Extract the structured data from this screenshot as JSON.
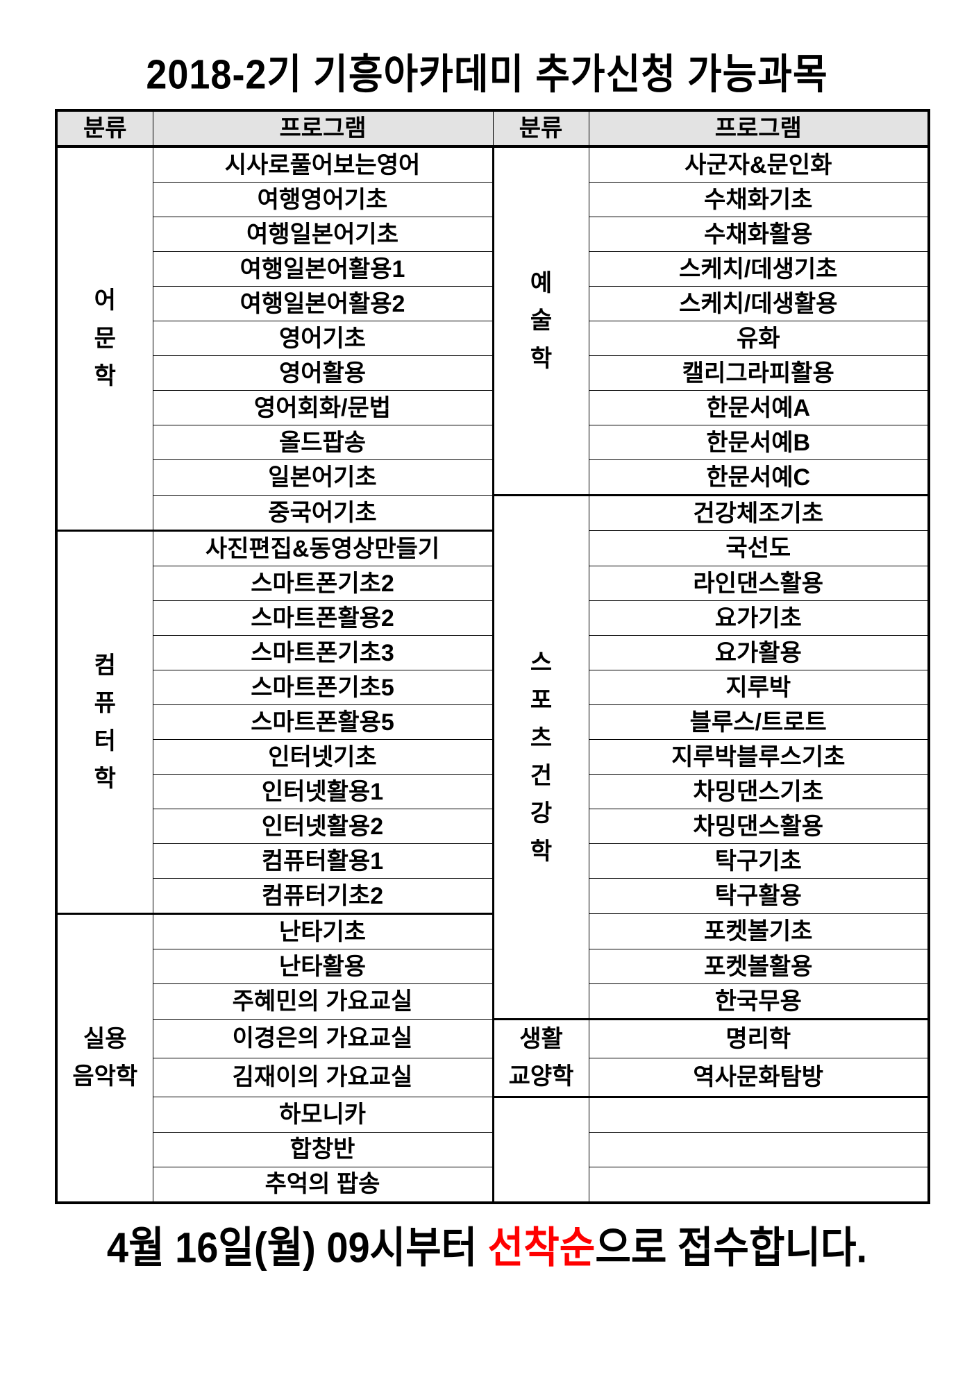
{
  "title": "2018-2기 기흥아카데미 추가신청 가능과목",
  "headers": {
    "category": "분류",
    "program": "프로그램"
  },
  "left_groups": [
    {
      "category": [
        "어",
        "문",
        "학"
      ],
      "items": [
        "시사로풀어보는영어",
        "여행영어기초",
        "여행일본어기초",
        "여행일본어활용1",
        "여행일본어활용2",
        "영어기초",
        "영어활용",
        "영어회화/문법",
        "올드팝송",
        "일본어기초",
        "중국어기초"
      ]
    },
    {
      "category": [
        "컴",
        "퓨",
        "터",
        "학"
      ],
      "items": [
        "사진편집&동영상만들기",
        "스마트폰기초2",
        "스마트폰활용2",
        "스마트폰기초3",
        "스마트폰기초5",
        "스마트폰활용5",
        "인터넷기초",
        "인터넷활용1",
        "인터넷활용2",
        "컴퓨터활용1",
        "컴퓨터기초2"
      ]
    },
    {
      "category": [
        "실용",
        "음악학"
      ],
      "items": [
        "난타기초",
        "난타활용",
        "주혜민의 가요교실",
        "이경은의 가요교실",
        "김재이의 가요교실",
        "하모니카",
        "합창반",
        "추억의 팝송"
      ]
    }
  ],
  "right_groups": [
    {
      "category": [
        "예",
        "술",
        "학"
      ],
      "items": [
        "사군자&문인화",
        "수채화기초",
        "수채화활용",
        "스케치/데생기초",
        "스케치/데생활용",
        "유화",
        "캘리그라피활용",
        "한문서예A",
        "한문서예B",
        "한문서예C"
      ]
    },
    {
      "category": [
        "스",
        "포",
        "츠",
        "건",
        "강",
        "학"
      ],
      "items": [
        "건강체조기초",
        "국선도",
        "라인댄스활용",
        "요가기초",
        "요가활용",
        "지루박",
        "블루스/트로트",
        "지루박블루스기초",
        "차밍댄스기초",
        "차밍댄스활용",
        "탁구기초",
        "탁구활용",
        "포켓볼기초",
        "포켓볼활용",
        "한국무용"
      ]
    },
    {
      "category": [
        "생활",
        "교양학"
      ],
      "items": [
        "명리학",
        "역사문화탐방"
      ]
    },
    {
      "category": [],
      "items": [
        "",
        "",
        ""
      ],
      "empty": true
    }
  ],
  "footer": {
    "before": "4월 16일(월) 09시부터 ",
    "highlight": "선착순",
    "after": "으로 접수합니다."
  },
  "colors": {
    "highlight": "#ff0000",
    "header_bg": "#e3e3e3"
  }
}
